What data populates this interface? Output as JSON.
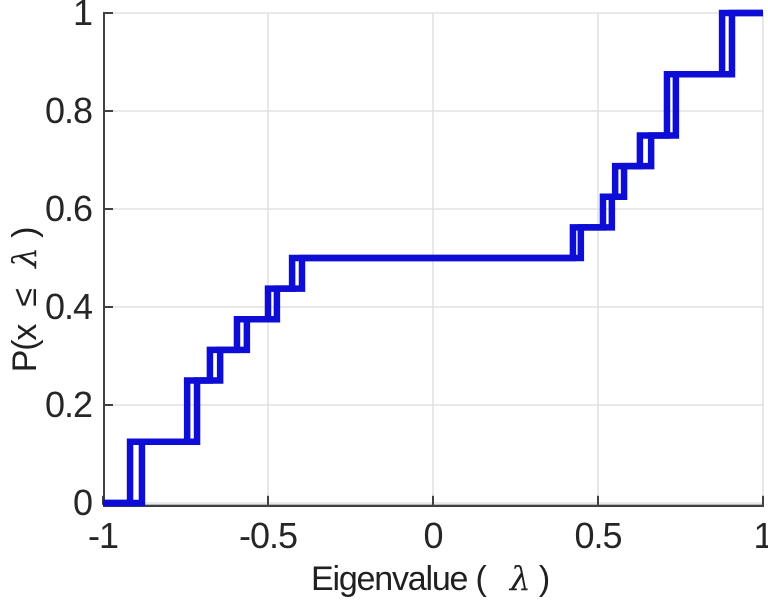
{
  "figure": {
    "xlabel": {
      "prefix": "Eigenvalue (",
      "lambda": "λ",
      "suffix": ")"
    },
    "ylabel": {
      "prefix": "P(x",
      "leq": "≤",
      "lambda": "λ",
      "suffix": ")"
    }
  },
  "chart_data": {
    "type": "ecdf_stairs",
    "title": "",
    "xlabel": "Eigenvalue ( λ)",
    "ylabel": "P(x ≤ λ)",
    "xlim": [
      -1,
      1
    ],
    "ylim": [
      0,
      1
    ],
    "x_ticks": [
      -1,
      -0.5,
      0,
      0.5,
      1
    ],
    "x_tick_labels": [
      "-1",
      "-0.5",
      "0",
      "0.5",
      "1"
    ],
    "y_ticks": [
      0,
      0.2,
      0.4,
      0.6,
      0.8,
      1
    ],
    "y_tick_labels": [
      "0",
      "0.2",
      "0.4",
      "0.6",
      "0.8",
      "1"
    ],
    "grid": true,
    "legend": null,
    "line_color": "#0d0dd6",
    "grid_color": "#e2e2e2",
    "axis_color": "#404040",
    "tick_label_color": "#262626",
    "levels": [
      0,
      0.125,
      0.25,
      0.3125,
      0.375,
      0.4375,
      0.5,
      0.5625,
      0.625,
      0.6875,
      0.75,
      0.875,
      1
    ],
    "series": [
      {
        "name": "ecdf-steps-left",
        "jumps": [
          -0.918,
          -0.745,
          -0.676,
          -0.594,
          -0.5,
          -0.427,
          0.424,
          0.515,
          0.552,
          0.627,
          0.709,
          0.876
        ]
      },
      {
        "name": "ecdf-steps-right",
        "jumps": [
          -0.882,
          -0.715,
          -0.645,
          -0.564,
          -0.473,
          -0.397,
          0.448,
          0.542,
          0.579,
          0.661,
          0.736,
          0.906
        ]
      }
    ]
  }
}
